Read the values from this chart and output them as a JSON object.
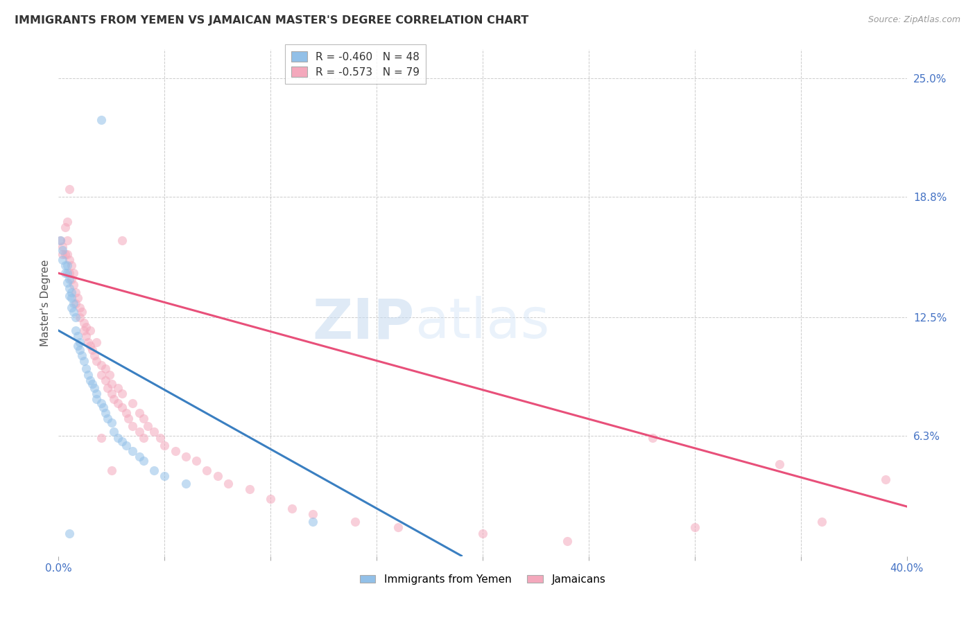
{
  "title": "IMMIGRANTS FROM YEMEN VS JAMAICAN MASTER'S DEGREE CORRELATION CHART",
  "source": "Source: ZipAtlas.com",
  "ylabel": "Master's Degree",
  "right_yticks": [
    "25.0%",
    "18.8%",
    "12.5%",
    "6.3%"
  ],
  "right_ytick_vals": [
    0.25,
    0.188,
    0.125,
    0.063
  ],
  "xlim": [
    0.0,
    0.4
  ],
  "ylim": [
    0.0,
    0.265
  ],
  "blue_color": "#92c0e8",
  "pink_color": "#f4a8bc",
  "blue_line_color": "#3a7fc1",
  "pink_line_color": "#e8507a",
  "blue_intercept": 0.118,
  "blue_slope": -0.62,
  "pink_intercept": 0.148,
  "pink_slope": -0.305,
  "yemen_scatter": [
    [
      0.001,
      0.165
    ],
    [
      0.002,
      0.16
    ],
    [
      0.002,
      0.155
    ],
    [
      0.003,
      0.152
    ],
    [
      0.003,
      0.148
    ],
    [
      0.004,
      0.152
    ],
    [
      0.004,
      0.148
    ],
    [
      0.004,
      0.143
    ],
    [
      0.005,
      0.145
    ],
    [
      0.005,
      0.14
    ],
    [
      0.005,
      0.136
    ],
    [
      0.006,
      0.138
    ],
    [
      0.006,
      0.135
    ],
    [
      0.006,
      0.13
    ],
    [
      0.007,
      0.132
    ],
    [
      0.007,
      0.128
    ],
    [
      0.008,
      0.125
    ],
    [
      0.008,
      0.118
    ],
    [
      0.009,
      0.115
    ],
    [
      0.009,
      0.11
    ],
    [
      0.01,
      0.112
    ],
    [
      0.01,
      0.108
    ],
    [
      0.011,
      0.105
    ],
    [
      0.012,
      0.102
    ],
    [
      0.013,
      0.098
    ],
    [
      0.014,
      0.095
    ],
    [
      0.015,
      0.092
    ],
    [
      0.016,
      0.09
    ],
    [
      0.017,
      0.088
    ],
    [
      0.018,
      0.085
    ],
    [
      0.018,
      0.082
    ],
    [
      0.02,
      0.08
    ],
    [
      0.021,
      0.078
    ],
    [
      0.022,
      0.075
    ],
    [
      0.023,
      0.072
    ],
    [
      0.025,
      0.07
    ],
    [
      0.026,
      0.065
    ],
    [
      0.028,
      0.062
    ],
    [
      0.03,
      0.06
    ],
    [
      0.032,
      0.058
    ],
    [
      0.035,
      0.055
    ],
    [
      0.038,
      0.052
    ],
    [
      0.04,
      0.05
    ],
    [
      0.045,
      0.045
    ],
    [
      0.05,
      0.042
    ],
    [
      0.06,
      0.038
    ],
    [
      0.12,
      0.018
    ],
    [
      0.02,
      0.228
    ],
    [
      0.005,
      0.012
    ]
  ],
  "jamaica_scatter": [
    [
      0.001,
      0.165
    ],
    [
      0.002,
      0.162
    ],
    [
      0.002,
      0.158
    ],
    [
      0.003,
      0.172
    ],
    [
      0.003,
      0.158
    ],
    [
      0.004,
      0.175
    ],
    [
      0.004,
      0.165
    ],
    [
      0.004,
      0.158
    ],
    [
      0.005,
      0.155
    ],
    [
      0.005,
      0.148
    ],
    [
      0.006,
      0.152
    ],
    [
      0.006,
      0.145
    ],
    [
      0.007,
      0.148
    ],
    [
      0.007,
      0.142
    ],
    [
      0.008,
      0.138
    ],
    [
      0.008,
      0.132
    ],
    [
      0.009,
      0.135
    ],
    [
      0.01,
      0.13
    ],
    [
      0.01,
      0.125
    ],
    [
      0.011,
      0.128
    ],
    [
      0.012,
      0.122
    ],
    [
      0.012,
      0.118
    ],
    [
      0.013,
      0.12
    ],
    [
      0.013,
      0.115
    ],
    [
      0.014,
      0.112
    ],
    [
      0.015,
      0.118
    ],
    [
      0.015,
      0.11
    ],
    [
      0.016,
      0.108
    ],
    [
      0.017,
      0.105
    ],
    [
      0.018,
      0.112
    ],
    [
      0.018,
      0.102
    ],
    [
      0.02,
      0.1
    ],
    [
      0.02,
      0.095
    ],
    [
      0.022,
      0.098
    ],
    [
      0.022,
      0.092
    ],
    [
      0.023,
      0.088
    ],
    [
      0.024,
      0.095
    ],
    [
      0.025,
      0.09
    ],
    [
      0.025,
      0.085
    ],
    [
      0.026,
      0.082
    ],
    [
      0.028,
      0.088
    ],
    [
      0.028,
      0.08
    ],
    [
      0.03,
      0.085
    ],
    [
      0.03,
      0.078
    ],
    [
      0.032,
      0.075
    ],
    [
      0.033,
      0.072
    ],
    [
      0.035,
      0.08
    ],
    [
      0.035,
      0.068
    ],
    [
      0.038,
      0.075
    ],
    [
      0.038,
      0.065
    ],
    [
      0.04,
      0.072
    ],
    [
      0.04,
      0.062
    ],
    [
      0.042,
      0.068
    ],
    [
      0.045,
      0.065
    ],
    [
      0.048,
      0.062
    ],
    [
      0.05,
      0.058
    ],
    [
      0.055,
      0.055
    ],
    [
      0.06,
      0.052
    ],
    [
      0.065,
      0.05
    ],
    [
      0.07,
      0.045
    ],
    [
      0.075,
      0.042
    ],
    [
      0.08,
      0.038
    ],
    [
      0.09,
      0.035
    ],
    [
      0.1,
      0.03
    ],
    [
      0.11,
      0.025
    ],
    [
      0.12,
      0.022
    ],
    [
      0.14,
      0.018
    ],
    [
      0.16,
      0.015
    ],
    [
      0.2,
      0.012
    ],
    [
      0.24,
      0.008
    ],
    [
      0.28,
      0.062
    ],
    [
      0.3,
      0.015
    ],
    [
      0.34,
      0.048
    ],
    [
      0.36,
      0.018
    ],
    [
      0.39,
      0.04
    ],
    [
      0.005,
      0.192
    ],
    [
      0.03,
      0.165
    ],
    [
      0.02,
      0.062
    ],
    [
      0.025,
      0.045
    ]
  ]
}
